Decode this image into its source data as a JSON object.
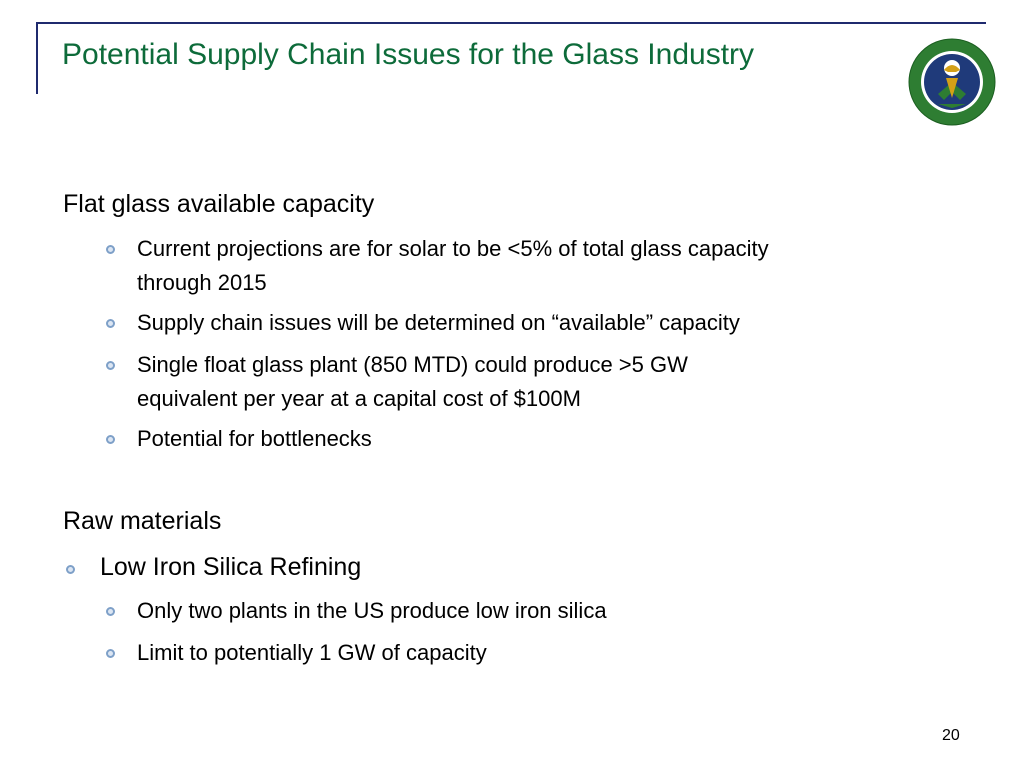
{
  "slide": {
    "title": "Potential Supply Chain Issues for the Glass Industry",
    "page_number": "20"
  },
  "logo": {
    "name": "department-of-energy-seal",
    "text_top": "DEPARTMENT OF ENERGY",
    "text_bottom": "UNITED STATES OF AMERICA",
    "colors": {
      "ring": "#2e7d32",
      "center": "#1f3a7a",
      "gold": "#d4a017"
    }
  },
  "sections": [
    {
      "heading": "Flat glass available capacity",
      "bullets": [
        {
          "level": 2,
          "lines": [
            "Current projections are for solar to be <5% of total glass capacity",
            "through 2015"
          ]
        },
        {
          "level": 2,
          "lines": [
            "Supply chain issues will be determined on “available” capacity"
          ]
        },
        {
          "level": 2,
          "lines": [
            "Single float glass plant (850 MTD) could produce >5 GW",
            "equivalent per year at a capital cost of $100M"
          ]
        },
        {
          "level": 2,
          "lines": [
            "Potential for bottlenecks"
          ]
        }
      ]
    },
    {
      "heading": "Raw materials",
      "bullets": [
        {
          "level": 1,
          "lines": [
            "Low Iron Silica Refining"
          ]
        },
        {
          "level": 2,
          "lines": [
            "Only two plants in the US produce low iron silica"
          ]
        },
        {
          "level": 2,
          "lines": [
            "Limit to potentially 1 GW of capacity"
          ]
        }
      ]
    }
  ],
  "colors": {
    "title": "#0d6b3a",
    "rule": "#1f2a6e",
    "bullet": "#7ea0c8",
    "text": "#000000"
  }
}
